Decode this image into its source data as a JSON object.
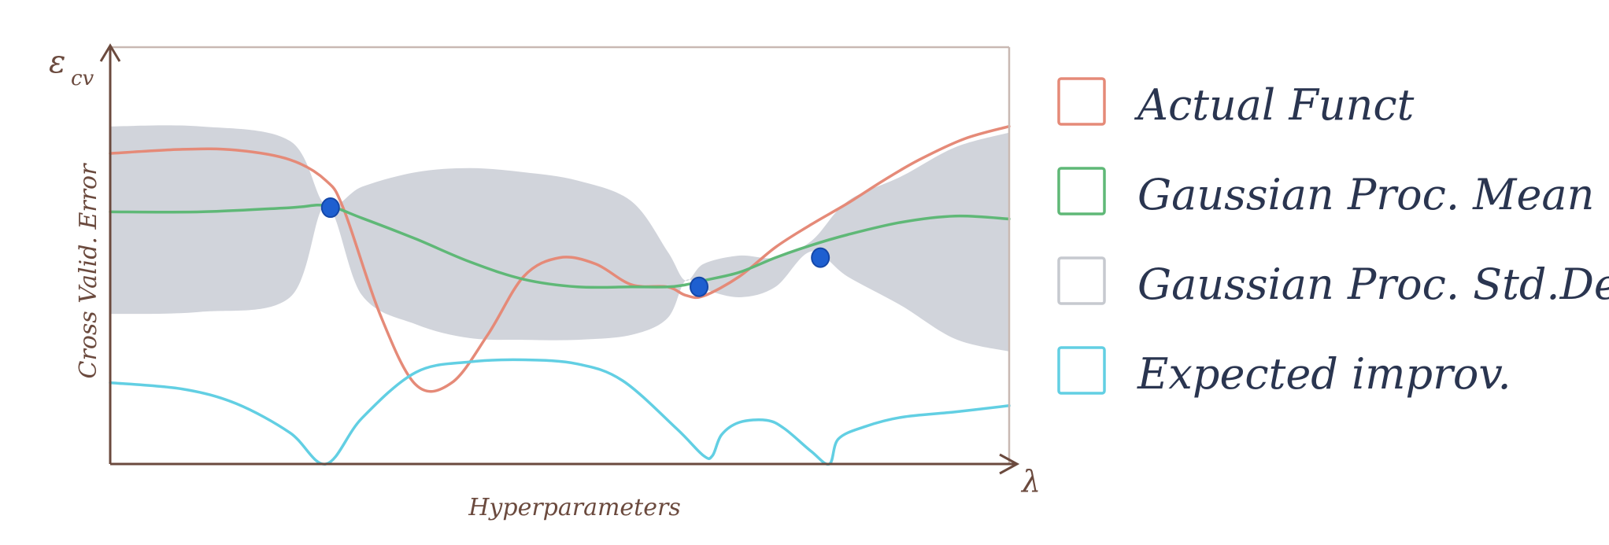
{
  "chart_data": {
    "type": "line",
    "xlabel": "Hyperparameters",
    "ylabel": "Cross Valid. Error",
    "y_axis_symbol": "ε",
    "y_axis_subscript": "cv",
    "x_axis_symbol": "λ",
    "xlim": [
      0,
      100
    ],
    "ylim": [
      0,
      100
    ],
    "grid": false,
    "legend_placement": "right",
    "show_tick_labels": false,
    "series": [
      {
        "name": "Actual Funct",
        "color": "#e58a78",
        "x": [
          0,
          8,
          14,
          20,
          24,
          26,
          30,
          34,
          38,
          42,
          46,
          50,
          54,
          58,
          62,
          64,
          66,
          70,
          74,
          78,
          82,
          86,
          90,
          95,
          100
        ],
        "values": [
          74.5,
          75.5,
          75.3,
          73,
          68,
          61,
          36,
          19,
          19.5,
          31,
          45,
          49.5,
          48,
          43,
          42.5,
          40.5,
          40.3,
          45,
          52,
          57.5,
          62.5,
          68,
          73,
          78,
          81
        ]
      },
      {
        "name": "Gaussian Proc. Mean",
        "color": "#5fb877",
        "x": [
          0,
          10,
          20,
          24,
          28,
          34,
          40,
          46,
          52,
          58,
          62,
          64,
          66,
          70,
          74,
          78,
          82,
          88,
          94,
          100
        ],
        "values": [
          60.5,
          60.5,
          61.5,
          62,
          59,
          54,
          48.5,
          44.3,
          42.5,
          42.5,
          42.5,
          43,
          44,
          46,
          49.5,
          52.5,
          55,
          58,
          59.5,
          58.8
        ]
      },
      {
        "name": "Expected improv.",
        "color": "#62cfe3",
        "x": [
          0,
          8,
          14,
          20,
          24,
          28,
          34,
          40,
          46,
          52,
          57,
          63,
          66,
          67,
          68,
          70,
          73,
          75,
          78,
          80,
          81,
          84,
          88,
          94,
          100
        ],
        "values": [
          19.5,
          18,
          14.5,
          7.5,
          0,
          11,
          22,
          24.5,
          25,
          24,
          20,
          8.5,
          2,
          2,
          7,
          10,
          10.5,
          8.5,
          3,
          0,
          6,
          9,
          11.2,
          12.5,
          14
        ]
      }
    ],
    "band": {
      "name": "Gaussian Proc. Std.Dev.",
      "color": "#d1d4db",
      "x": [
        0,
        10,
        20,
        24,
        28,
        34,
        40,
        46,
        52,
        58,
        62,
        64,
        66,
        70,
        74,
        78,
        82,
        88,
        94,
        100
      ],
      "upper": [
        81,
        81,
        77.5,
        62,
        66.5,
        70,
        71,
        70,
        68,
        63,
        51,
        44,
        48,
        50,
        49.5,
        53.5,
        63,
        69,
        76,
        79.5
      ],
      "lower": [
        36,
        36.5,
        40,
        62,
        40.5,
        33.5,
        30.2,
        29.8,
        29.8,
        31,
        35,
        44,
        42,
        40,
        42.5,
        51,
        45,
        38,
        30,
        27
      ]
    },
    "observations": {
      "color": "#1e5fd0",
      "x": [
        24.5,
        65.5,
        79
      ],
      "y": [
        61.5,
        42.5,
        49.5
      ]
    },
    "legend": [
      {
        "label": "Actual Funct",
        "color": "#e58a78"
      },
      {
        "label": "Gaussian Proc. Mean",
        "color": "#5fb877"
      },
      {
        "label": "Gaussian Proc. Std.Dev.",
        "color": "#c6c9cf"
      },
      {
        "label": "Expected improv.",
        "color": "#62cfe3"
      }
    ]
  }
}
